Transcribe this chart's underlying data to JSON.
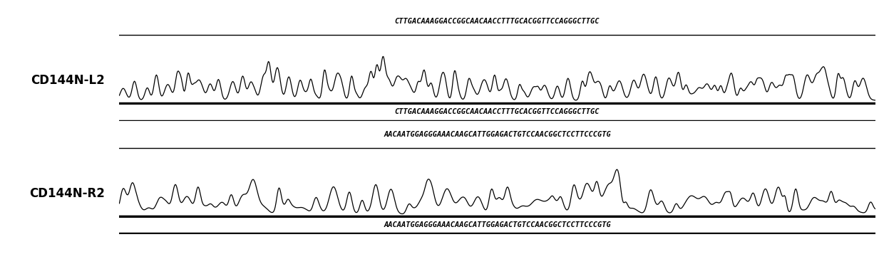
{
  "seq1_top": "CTTGACAAAGGACCGGCAACAACCTTTGCACGGTTCCAGGGCTTGC",
  "seq1_bottom": "CTTGACAAAGGACCGGCAACAACCTTTGCACGGTTCCAGGGCTTGC",
  "seq2_top": "AACAATGGAGGGAAACAAGCATTGGAGACTGTCCAACGGCTCCTTCCCGTG",
  "seq2_bottom": "AACAATGGAGGGAAACAAGCATTGGAGACTGTCCAACGGCTCCTTCCCGTG",
  "label1": "CD144N-L2",
  "label2": "CD144N-R2",
  "bg_color": "#ffffff",
  "trace_color": "#000000",
  "text_color": "#000000",
  "label_fontsize": 12,
  "seq_fontsize": 7.5,
  "fig_width": 12.4,
  "fig_height": 3.78
}
